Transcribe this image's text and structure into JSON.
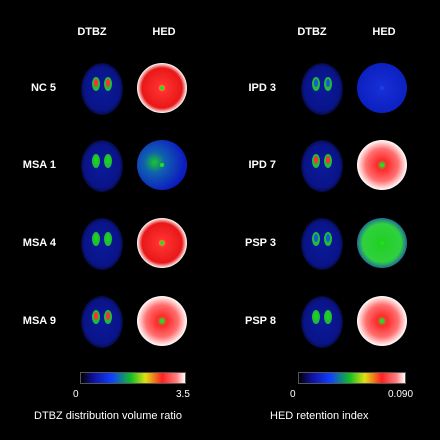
{
  "headers": {
    "dtbz": "DTBZ",
    "hed": "HED"
  },
  "left_rows": [
    "NC 5",
    "MSA 1",
    "MSA 4",
    "MSA 9"
  ],
  "right_rows": [
    "IPD 3",
    "IPD 7",
    "PSP 3",
    "PSP 8"
  ],
  "hed_left_state": [
    "red",
    "blue-green",
    "red",
    "red-white"
  ],
  "hed_right_state": [
    "blue",
    "red-white",
    "green",
    "red-white"
  ],
  "colorbar_left": {
    "min": "0",
    "max": "3.5",
    "title": "DTBZ distribution volume ratio"
  },
  "colorbar_right": {
    "min": "0",
    "max": "0.090",
    "title": "HED retention index"
  },
  "colors": {
    "low": "#0a1aa8",
    "mid": "#16d020",
    "high": "#f02020",
    "top": "#ffffff"
  }
}
